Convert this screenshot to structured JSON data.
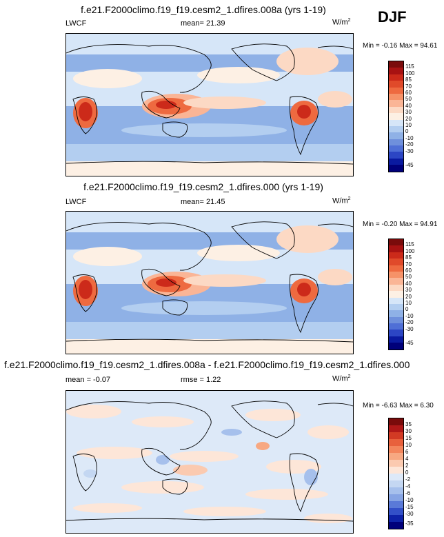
{
  "season": "DJF",
  "panels": [
    {
      "title": "f.e21.F2000climo.f19_f19.cesm2_1.dfires.008a (yrs 1-19)",
      "left_label": "LWCF",
      "center_label": "mean=  21.39",
      "units": "W/m",
      "units_sup": "2",
      "minmax": "Min =  -0.16 Max =  94.61",
      "colorbar": [
        "115",
        "100",
        "85",
        "70",
        "60",
        "50",
        "40",
        "30",
        "20",
        "10",
        "0",
        "-10",
        "-20",
        "-30",
        "-45"
      ]
    },
    {
      "title": "f.e21.F2000climo.f19_f19.cesm2_1.dfires.000 (yrs 1-19)",
      "left_label": "LWCF",
      "center_label": "mean=  21.45",
      "units": "W/m",
      "units_sup": "2",
      "minmax": "Min =  -0.20 Max =  94.91",
      "colorbar": [
        "115",
        "100",
        "85",
        "70",
        "60",
        "50",
        "40",
        "30",
        "20",
        "10",
        "0",
        "-10",
        "-20",
        "-30",
        "-45"
      ]
    },
    {
      "title": "f.e21.F2000climo.f19_f19.cesm2_1.dfires.008a - f.e21.F2000climo.f19_f19.cesm2_1.dfires.000",
      "left_label": "mean =  -0.07",
      "center_label": "rmse =   1.22",
      "units": "W/m",
      "units_sup": "2",
      "minmax": "Min =  -6.63 Max =   6.30",
      "colorbar": [
        "35",
        "30",
        "15",
        "10",
        "6",
        "4",
        "2",
        "0",
        "-2",
        "-4",
        "-6",
        "-10",
        "-15",
        "-30",
        "-35"
      ]
    }
  ],
  "colors": {
    "seq": [
      "#7a0b0b",
      "#a81212",
      "#cc2a1a",
      "#e04a2a",
      "#ee6a40",
      "#f69268",
      "#fab596",
      "#fcd9c4",
      "#fdf0e4",
      "#d6e6f8",
      "#b3cef0",
      "#8fb1e6",
      "#6f90dc",
      "#4f6fd6",
      "#2c46c4",
      "#0a1aa0",
      "#00007a"
    ],
    "diff": [
      "#7a0b0b",
      "#b01818",
      "#d23a24",
      "#e8603c",
      "#f3855c",
      "#f7a882",
      "#fbcab0",
      "#fde6d8",
      "#dde9f8",
      "#c4d7f2",
      "#a6c0ec",
      "#86a4e4",
      "#5a7ad8",
      "#3350c8",
      "#0e22a8",
      "#00007a"
    ]
  }
}
